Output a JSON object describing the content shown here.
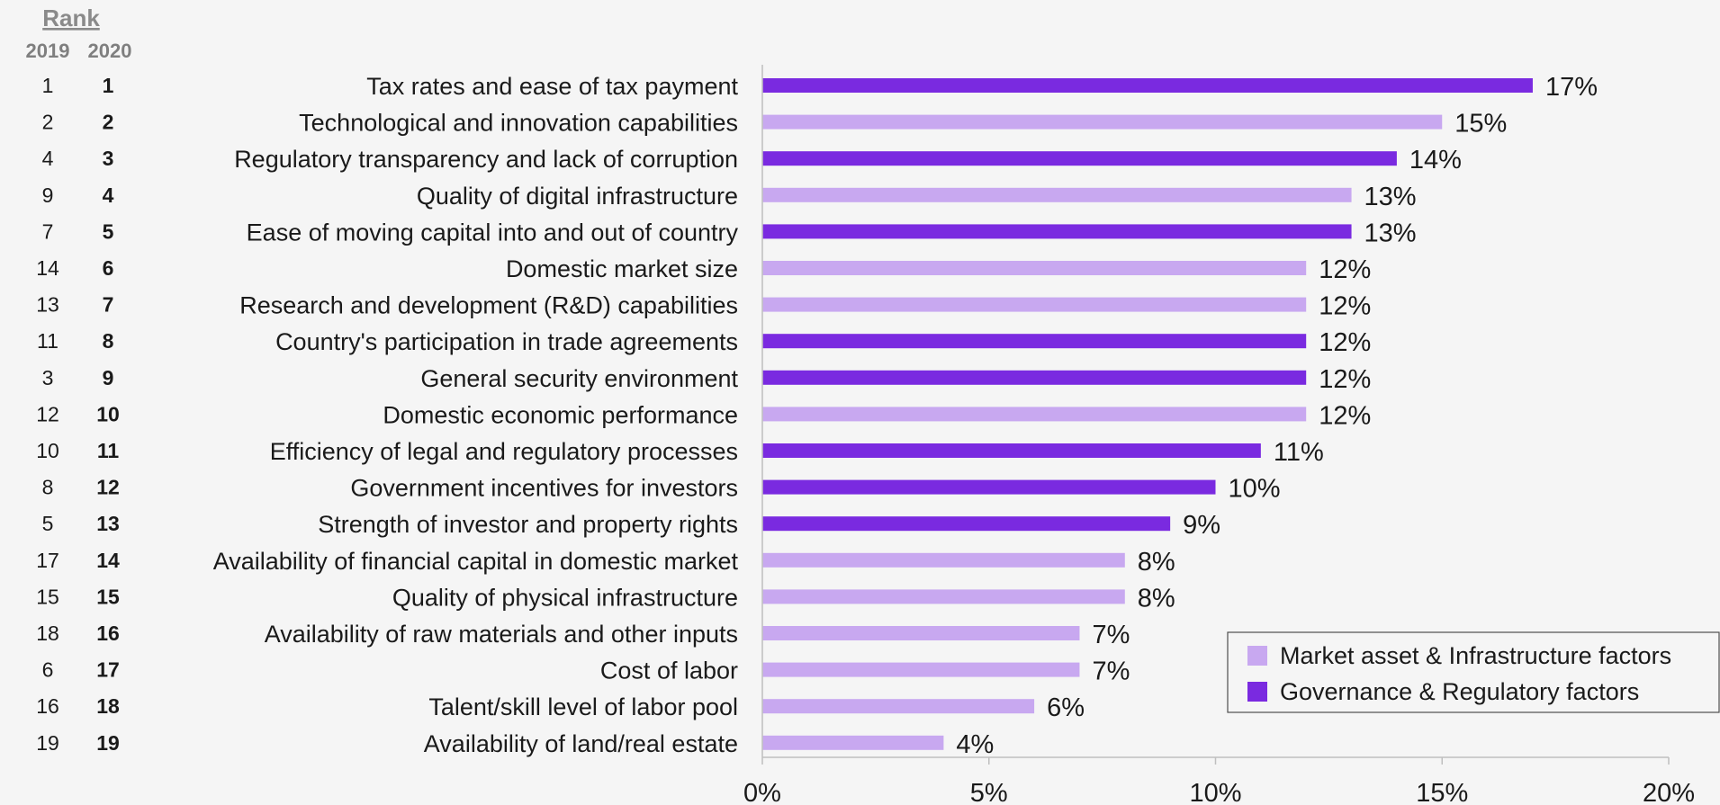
{
  "rank_header": {
    "title": "Rank",
    "year_2019": "2019",
    "year_2020": "2020"
  },
  "chart_data": {
    "type": "bar",
    "orientation": "horizontal",
    "title": "",
    "xlabel": "",
    "ylabel": "",
    "xlim": [
      0,
      20
    ],
    "x_ticks": [
      "0%",
      "5%",
      "10%",
      "15%",
      "20%"
    ],
    "grid": false,
    "legend_placement": "bottom-right",
    "colors": {
      "market": "#c8a8f0",
      "governance": "#7a2ae0"
    },
    "legend": [
      {
        "key": "market",
        "label": "Market asset & Infrastructure factors"
      },
      {
        "key": "governance",
        "label": "Governance & Regulatory factors"
      }
    ],
    "rows": [
      {
        "rank_2019": "1",
        "rank_2020": "1",
        "category": "Tax rates and ease of tax payment",
        "value": 17,
        "label": "17%",
        "group": "governance"
      },
      {
        "rank_2019": "2",
        "rank_2020": "2",
        "category": "Technological and innovation capabilities",
        "value": 15,
        "label": "15%",
        "group": "market"
      },
      {
        "rank_2019": "4",
        "rank_2020": "3",
        "category": "Regulatory transparency and lack of corruption",
        "value": 14,
        "label": "14%",
        "group": "governance"
      },
      {
        "rank_2019": "9",
        "rank_2020": "4",
        "category": "Quality of digital infrastructure",
        "value": 13,
        "label": "13%",
        "group": "market"
      },
      {
        "rank_2019": "7",
        "rank_2020": "5",
        "category": "Ease of moving capital into and out of country",
        "value": 13,
        "label": "13%",
        "group": "governance"
      },
      {
        "rank_2019": "14",
        "rank_2020": "6",
        "category": "Domestic market size",
        "value": 12,
        "label": "12%",
        "group": "market"
      },
      {
        "rank_2019": "13",
        "rank_2020": "7",
        "category": "Research and development (R&D) capabilities",
        "value": 12,
        "label": "12%",
        "group": "market"
      },
      {
        "rank_2019": "11",
        "rank_2020": "8",
        "category": "Country's participation in trade agreements",
        "value": 12,
        "label": "12%",
        "group": "governance"
      },
      {
        "rank_2019": "3",
        "rank_2020": "9",
        "category": "General security environment",
        "value": 12,
        "label": "12%",
        "group": "governance"
      },
      {
        "rank_2019": "12",
        "rank_2020": "10",
        "category": "Domestic economic performance",
        "value": 12,
        "label": "12%",
        "group": "market"
      },
      {
        "rank_2019": "10",
        "rank_2020": "11",
        "category": "Efficiency of legal and regulatory processes",
        "value": 11,
        "label": "11%",
        "group": "governance"
      },
      {
        "rank_2019": "8",
        "rank_2020": "12",
        "category": "Government incentives for investors",
        "value": 10,
        "label": "10%",
        "group": "governance"
      },
      {
        "rank_2019": "5",
        "rank_2020": "13",
        "category": "Strength of investor and property rights",
        "value": 9,
        "label": "9%",
        "group": "governance"
      },
      {
        "rank_2019": "17",
        "rank_2020": "14",
        "category": "Availability of financial capital in domestic market",
        "value": 8,
        "label": "8%",
        "group": "market"
      },
      {
        "rank_2019": "15",
        "rank_2020": "15",
        "category": "Quality of physical infrastructure",
        "value": 8,
        "label": "8%",
        "group": "market"
      },
      {
        "rank_2019": "18",
        "rank_2020": "16",
        "category": "Availability of raw materials and other inputs",
        "value": 7,
        "label": "7%",
        "group": "market"
      },
      {
        "rank_2019": "6",
        "rank_2020": "17",
        "category": "Cost of labor",
        "value": 7,
        "label": "7%",
        "group": "market"
      },
      {
        "rank_2019": "16",
        "rank_2020": "18",
        "category": "Talent/skill level of labor pool",
        "value": 6,
        "label": "6%",
        "group": "market"
      },
      {
        "rank_2019": "19",
        "rank_2020": "19",
        "category": "Availability of land/real estate",
        "value": 4,
        "label": "4%",
        "group": "market"
      }
    ]
  }
}
